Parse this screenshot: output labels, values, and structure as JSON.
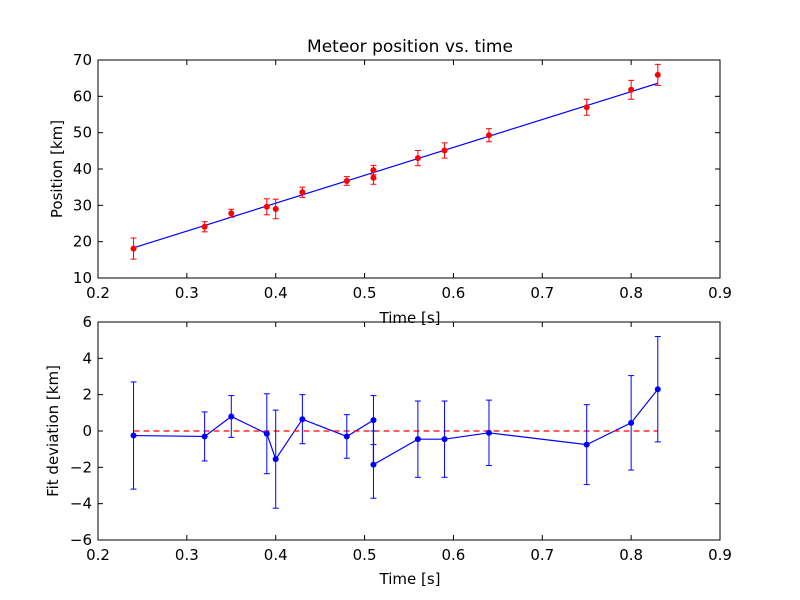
{
  "chart_data": [
    {
      "type": "scatter",
      "title": "Meteor position vs. time",
      "xlabel": "Time [s]",
      "ylabel": "Position [km]",
      "xlim": [
        0.2,
        0.9
      ],
      "ylim": [
        10,
        70
      ],
      "xticks": [
        "0.2",
        "0.3",
        "0.4",
        "0.5",
        "0.6",
        "0.7",
        "0.8",
        "0.9"
      ],
      "yticks": [
        "10",
        "20",
        "30",
        "40",
        "50",
        "60",
        "70"
      ],
      "grid": false,
      "colors": {
        "points": "#ff0000",
        "fit": "#0000ff"
      },
      "series": [
        {
          "kind": "errorbar-points",
          "x": [
            0.24,
            0.32,
            0.35,
            0.39,
            0.4,
            0.43,
            0.48,
            0.51,
            0.51,
            0.56,
            0.59,
            0.64,
            0.75,
            0.8,
            0.83
          ],
          "y": [
            18.1,
            24.1,
            27.8,
            29.6,
            29.0,
            33.6,
            36.7,
            37.6,
            39.7,
            43.0,
            45.1,
            49.3,
            57.0,
            61.8,
            65.9
          ],
          "yerr": [
            2.9,
            1.4,
            1.1,
            2.2,
            2.7,
            1.4,
            1.2,
            1.8,
            1.3,
            2.1,
            2.1,
            1.8,
            2.2,
            2.6,
            2.9
          ]
        },
        {
          "kind": "fit-line",
          "x": [
            0.24,
            0.83
          ],
          "y": [
            18.3,
            63.6
          ]
        }
      ]
    },
    {
      "type": "line",
      "title": "",
      "xlabel": "Time [s]",
      "ylabel": "Fit deviation [km]",
      "xlim": [
        0.2,
        0.9
      ],
      "ylim": [
        -6,
        6
      ],
      "xticks": [
        "0.2",
        "0.3",
        "0.4",
        "0.5",
        "0.6",
        "0.7",
        "0.8",
        "0.9"
      ],
      "yticks": [
        "−6",
        "−4",
        "−2",
        "0",
        "2",
        "4",
        "6"
      ],
      "grid": false,
      "colors": {
        "residuals": "#0000ff",
        "zero_line": "#ff0000"
      },
      "series": [
        {
          "kind": "errorbar-line",
          "x": [
            0.24,
            0.32,
            0.35,
            0.39,
            0.4,
            0.43,
            0.48,
            0.51,
            0.51,
            0.56,
            0.59,
            0.64,
            0.75,
            0.8,
            0.83
          ],
          "y": [
            -0.25,
            -0.3,
            0.8,
            -0.15,
            -1.55,
            0.65,
            -0.3,
            0.6,
            -1.85,
            -0.45,
            -0.45,
            -0.1,
            -0.75,
            0.45,
            2.3
          ],
          "yerr": [
            2.95,
            1.35,
            1.15,
            2.2,
            2.7,
            1.35,
            1.2,
            1.35,
            1.85,
            2.1,
            2.1,
            1.8,
            2.2,
            2.6,
            2.9
          ]
        },
        {
          "kind": "zero-line",
          "x": [
            0.24,
            0.83
          ],
          "y": [
            0,
            0
          ]
        }
      ]
    }
  ]
}
